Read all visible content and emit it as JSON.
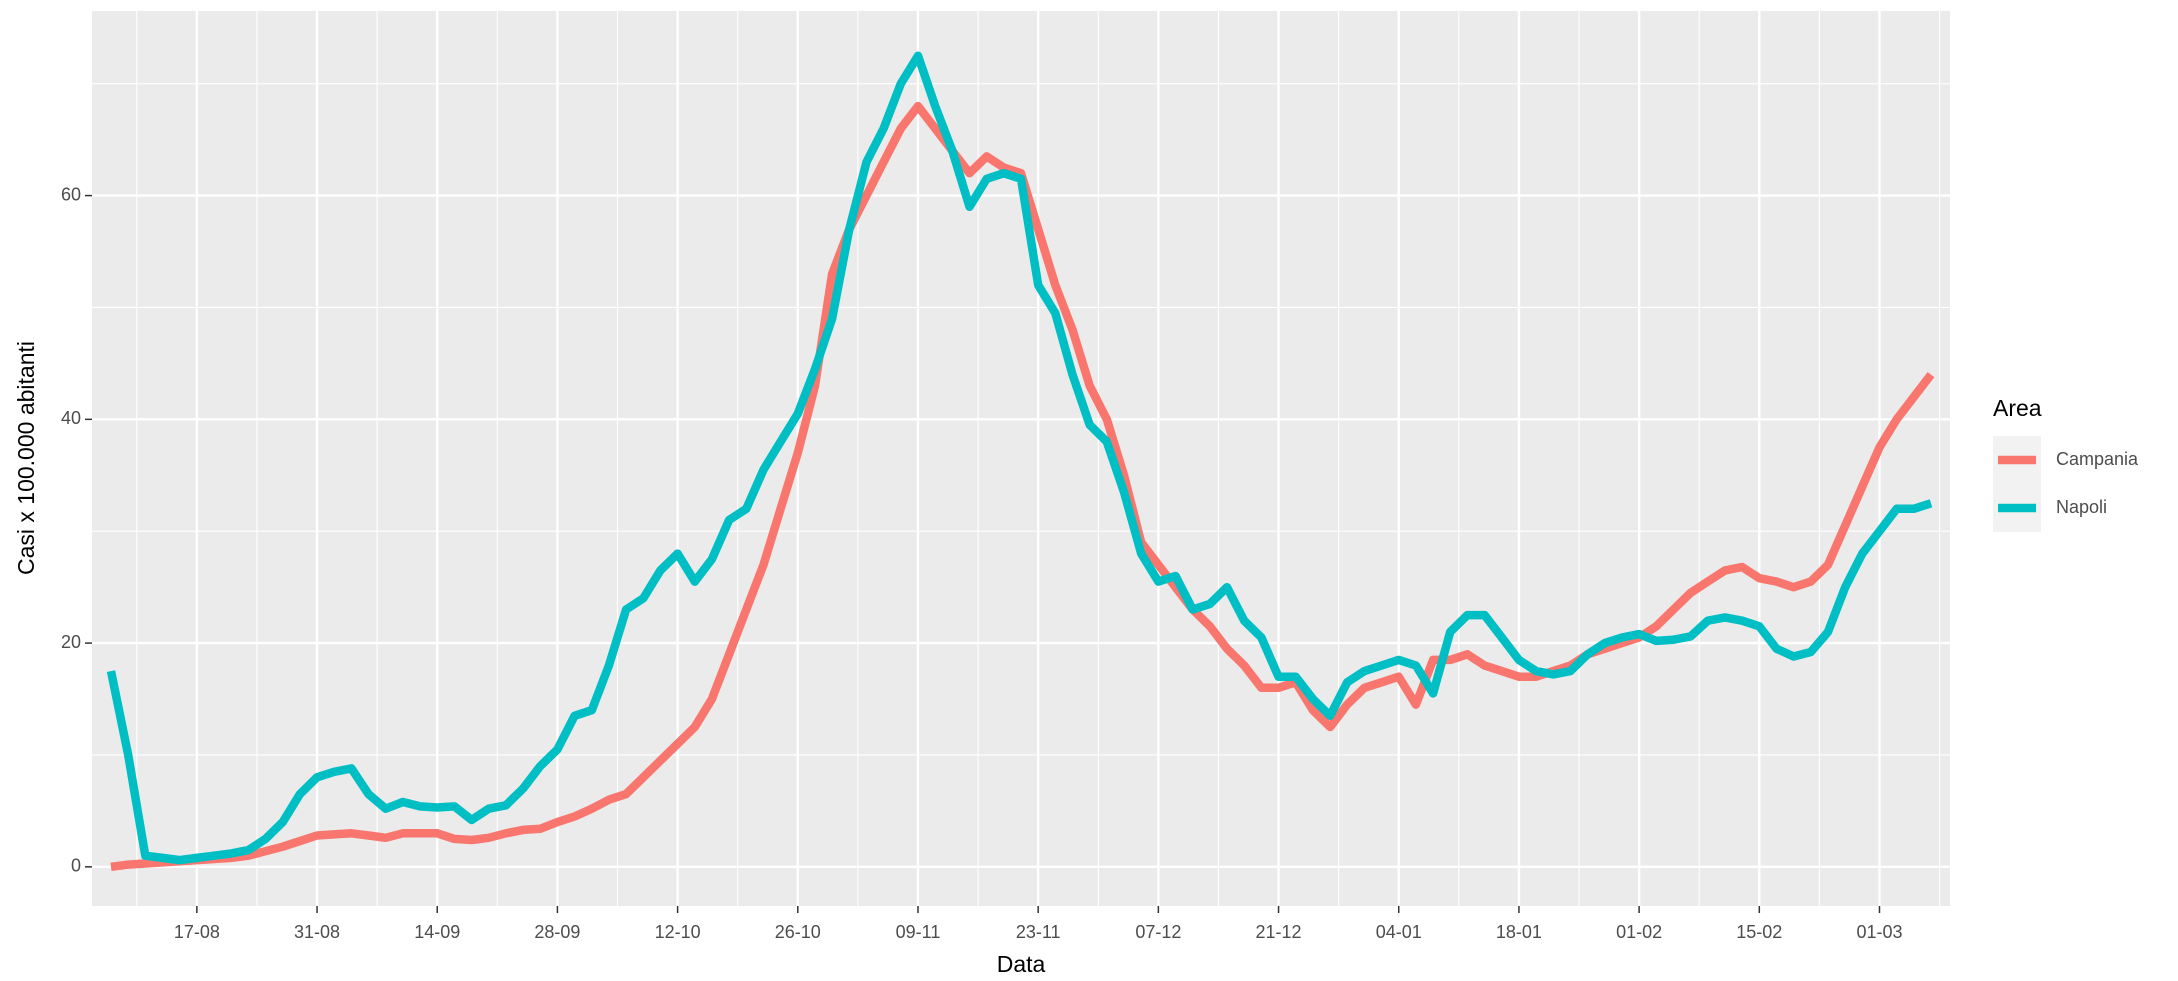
{
  "chart_data": {
    "type": "line",
    "xlabel": "Data",
    "ylabel": "Casi x 100.000 abitanti",
    "legend_title": "Area",
    "legend_position": "right",
    "grid": true,
    "categories": [
      null,
      null,
      null,
      null,
      null,
      "17-08",
      null,
      null,
      null,
      null,
      null,
      null,
      "31-08",
      null,
      null,
      null,
      null,
      null,
      null,
      "14-09",
      null,
      null,
      null,
      null,
      null,
      null,
      "28-09",
      null,
      null,
      null,
      null,
      null,
      null,
      "12-10",
      null,
      null,
      null,
      null,
      null,
      null,
      "26-10",
      null,
      null,
      null,
      null,
      null,
      null,
      "09-11",
      null,
      null,
      null,
      null,
      null,
      null,
      "23-11",
      null,
      null,
      null,
      null,
      null,
      null,
      "07-12",
      null,
      null,
      null,
      null,
      null,
      null,
      "21-12",
      null,
      null,
      null,
      null,
      null,
      null,
      "04-01",
      null,
      null,
      null,
      null,
      null,
      null,
      "18-01",
      null,
      null,
      null,
      null,
      null,
      null,
      "01-02",
      null,
      null,
      null,
      null,
      null,
      null,
      "15-02",
      null,
      null,
      null,
      null,
      null,
      null,
      "01-03",
      null,
      null,
      null
    ],
    "ylim": [
      -3.5,
      76.5
    ],
    "yticks": [
      0,
      20,
      40,
      60
    ],
    "series": [
      {
        "name": "Campania",
        "color": "#F8766D",
        "values": [
          0,
          0.2,
          0.3,
          0.4,
          0.5,
          0.6,
          0.7,
          0.8,
          1.0,
          1.4,
          1.8,
          2.3,
          2.8,
          2.9,
          3.0,
          2.8,
          2.6,
          3.0,
          3.0,
          3.0,
          2.5,
          2.4,
          2.6,
          3.0,
          3.3,
          3.4,
          4.0,
          4.5,
          5.2,
          6.0,
          6.5,
          8.0,
          9.5,
          11,
          12.5,
          15,
          19,
          23,
          27,
          32,
          37,
          43,
          53,
          57,
          60,
          63,
          66,
          68,
          66,
          64,
          62,
          63.5,
          62.5,
          62,
          57,
          52,
          48,
          43,
          40,
          35,
          29,
          27,
          25,
          23,
          21.5,
          19.5,
          18,
          16,
          16,
          16.5,
          14,
          12.5,
          14.5,
          16,
          16.5,
          17,
          14.5,
          18.5,
          18.5,
          19,
          18,
          17.5,
          17,
          17,
          17.5,
          18,
          19,
          19.5,
          20,
          20.5,
          21.5,
          23,
          24.5,
          25.5,
          26.5,
          26.8,
          25.8,
          25.5,
          25,
          25.5,
          27,
          30.5,
          34,
          37.5,
          40,
          42,
          44
        ]
      },
      {
        "name": "Napoli",
        "color": "#00BFC4",
        "values": [
          17.5,
          10,
          1,
          0.8,
          0.6,
          0.8,
          1.0,
          1.2,
          1.5,
          2.5,
          4,
          6.5,
          8,
          8.5,
          8.8,
          6.5,
          5.2,
          5.8,
          5.4,
          5.3,
          5.4,
          4.2,
          5.2,
          5.5,
          7,
          9,
          10.5,
          13.5,
          14,
          18,
          23,
          24,
          26.5,
          28,
          25.5,
          27.5,
          31,
          32,
          35.5,
          38,
          40.5,
          44.5,
          49,
          57,
          63,
          66,
          70,
          72.5,
          68,
          64,
          59,
          61.5,
          62,
          61.5,
          52,
          49.5,
          44,
          39.5,
          38,
          33.5,
          28,
          25.5,
          26,
          23,
          23.5,
          25,
          22,
          20.5,
          17,
          17,
          15,
          13.5,
          16.5,
          17.5,
          18,
          18.5,
          18,
          15.5,
          21,
          22.5,
          22.5,
          20.5,
          18.5,
          17.5,
          17.2,
          17.5,
          19,
          20,
          20.5,
          20.8,
          20.2,
          20.3,
          20.6,
          22,
          22.3,
          22,
          21.5,
          19.5,
          18.8,
          19.2,
          21,
          25,
          28,
          30,
          32,
          32,
          32.5
        ]
      }
    ]
  }
}
